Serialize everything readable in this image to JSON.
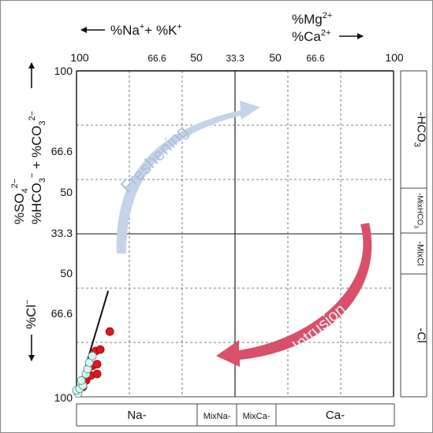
{
  "chart_data": {
    "type": "scatter",
    "title": "",
    "top_axis": {
      "left_label": {
        "base": "%Na",
        "sup1": "+",
        "mid": "+ %K",
        "sup2": "+"
      },
      "right_label_line1": {
        "base": "%Mg",
        "sup": "2+"
      },
      "right_label_line2": {
        "base": "%Ca",
        "sup": "2+"
      },
      "ticks": [
        "100",
        "66.6",
        "50",
        "33.3",
        "50",
        "66.6",
        "100"
      ]
    },
    "left_axis": {
      "upper_label_line1": {
        "base": "%SO",
        "sub": "4",
        "sup": "2−"
      },
      "upper_label_line2": {
        "base1": "%HCO",
        "sub1": "3",
        "sup1": "−",
        "mid": " + %CO",
        "sub2": "3",
        "sup2": "2−"
      },
      "lower_label": {
        "base": "%Cl",
        "sup": "−"
      },
      "ticks": [
        "100",
        "66.6",
        "50",
        "33.3",
        "50",
        "66.6",
        "100"
      ]
    },
    "right_axis_zones": [
      {
        "label": "-HCO",
        "sub": "3"
      },
      {
        "label": "-MixHCO",
        "sub": "3"
      },
      {
        "label": "-MixCl",
        "sub": ""
      },
      {
        "label": "-Cl",
        "sub": ""
      }
    ],
    "bottom_axis_zones": [
      "Na-",
      "MixNa-",
      "MixCa-",
      "Ca-"
    ],
    "annotations": {
      "freshening": "Freshening",
      "intrusion": "Intrusion"
    },
    "colors": {
      "freshening_arrow": "#c5d3e8",
      "freshening_text": "#a9bedc",
      "intrusion_arrow": "#d95068",
      "intrusion_text": "#e8eef7",
      "red_points": "#e0161b",
      "cyan_points": "#d6f5f3"
    },
    "trend_line": {
      "x": [
        -100,
        -80
      ],
      "y": [
        -100,
        -35
      ]
    },
    "series": [
      {
        "color": "red",
        "points": [
          {
            "x": -96,
            "y": -94
          },
          {
            "x": -94,
            "y": -90
          },
          {
            "x": -91,
            "y": -87
          },
          {
            "x": -87,
            "y": -86
          },
          {
            "x": -93,
            "y": -84
          },
          {
            "x": -90,
            "y": -81
          },
          {
            "x": -87,
            "y": -80
          },
          {
            "x": -88,
            "y": -72
          },
          {
            "x": -85,
            "y": -71
          },
          {
            "x": -79,
            "y": -60
          }
        ]
      },
      {
        "color": "lightcyan",
        "points": [
          {
            "x": -99,
            "y": -98
          },
          {
            "x": -100,
            "y": -96
          },
          {
            "x": -98,
            "y": -95
          },
          {
            "x": -96,
            "y": -93
          },
          {
            "x": -97,
            "y": -90
          },
          {
            "x": -94,
            "y": -86
          },
          {
            "x": -93,
            "y": -83
          },
          {
            "x": -92,
            "y": -79
          },
          {
            "x": -90,
            "y": -75
          }
        ]
      }
    ]
  }
}
